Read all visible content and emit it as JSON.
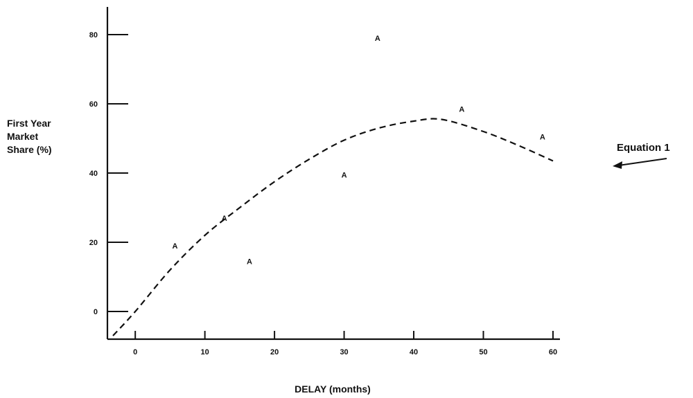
{
  "chart_data": {
    "type": "scatter",
    "ylabel_lines": [
      "First Year",
      "Market",
      "Share (%)"
    ],
    "xlabel": "DELAY (months)",
    "xlim": [
      -4,
      61
    ],
    "ylim": [
      -8,
      88
    ],
    "x_ticks": [
      0,
      10,
      20,
      30,
      40,
      50,
      60
    ],
    "y_ticks": [
      0,
      20,
      40,
      60,
      80
    ],
    "x_tick_labels": [
      "0",
      "10",
      "20",
      "30",
      "40",
      "50",
      "60"
    ],
    "y_tick_labels": [
      "0",
      "20",
      "40",
      "60",
      "80"
    ],
    "points": [
      {
        "x": 5.7,
        "y": 19,
        "label": "A"
      },
      {
        "x": 12.8,
        "y": 27,
        "label": "A"
      },
      {
        "x": 16.4,
        "y": 14.5,
        "label": "A"
      },
      {
        "x": 30,
        "y": 39.5,
        "label": "A"
      },
      {
        "x": 34.8,
        "y": 79,
        "label": "A"
      },
      {
        "x": 46.9,
        "y": 58.5,
        "label": "A"
      },
      {
        "x": 58.5,
        "y": 50.5,
        "label": "A"
      }
    ],
    "curve": {
      "style": "dashed",
      "points": [
        {
          "x": -3.2,
          "y": -7
        },
        {
          "x": 0,
          "y": 0
        },
        {
          "x": 5,
          "y": 12
        },
        {
          "x": 10,
          "y": 22
        },
        {
          "x": 15,
          "y": 30
        },
        {
          "x": 20,
          "y": 37.5
        },
        {
          "x": 25,
          "y": 44
        },
        {
          "x": 30,
          "y": 49.5
        },
        {
          "x": 35,
          "y": 53
        },
        {
          "x": 40,
          "y": 55
        },
        {
          "x": 44,
          "y": 55.5
        },
        {
          "x": 50,
          "y": 52
        },
        {
          "x": 55,
          "y": 48
        },
        {
          "x": 60,
          "y": 43.5
        }
      ]
    },
    "annotation": "Equation 1",
    "grid": false,
    "legend": "none"
  }
}
